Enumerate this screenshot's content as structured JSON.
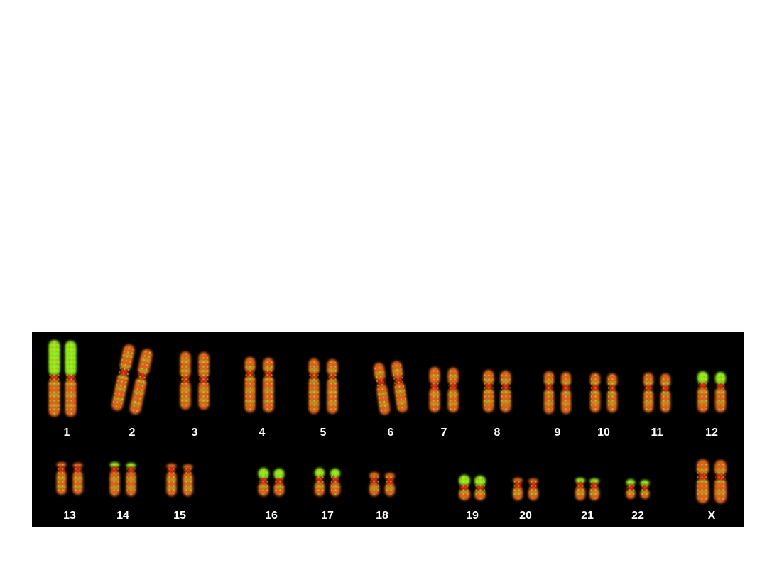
{
  "karyotype": {
    "background_color": "#000000",
    "stain_colors": {
      "red": "#d42a10",
      "orange": "#d8641c",
      "green": "#8fe81a"
    },
    "labels": [
      "1",
      "2",
      "3",
      "4",
      "5",
      "6",
      "7",
      "8",
      "9",
      "10",
      "11",
      "12",
      "13",
      "14",
      "15",
      "16",
      "17",
      "18",
      "19",
      "20",
      "21",
      "22",
      "X"
    ]
  }
}
